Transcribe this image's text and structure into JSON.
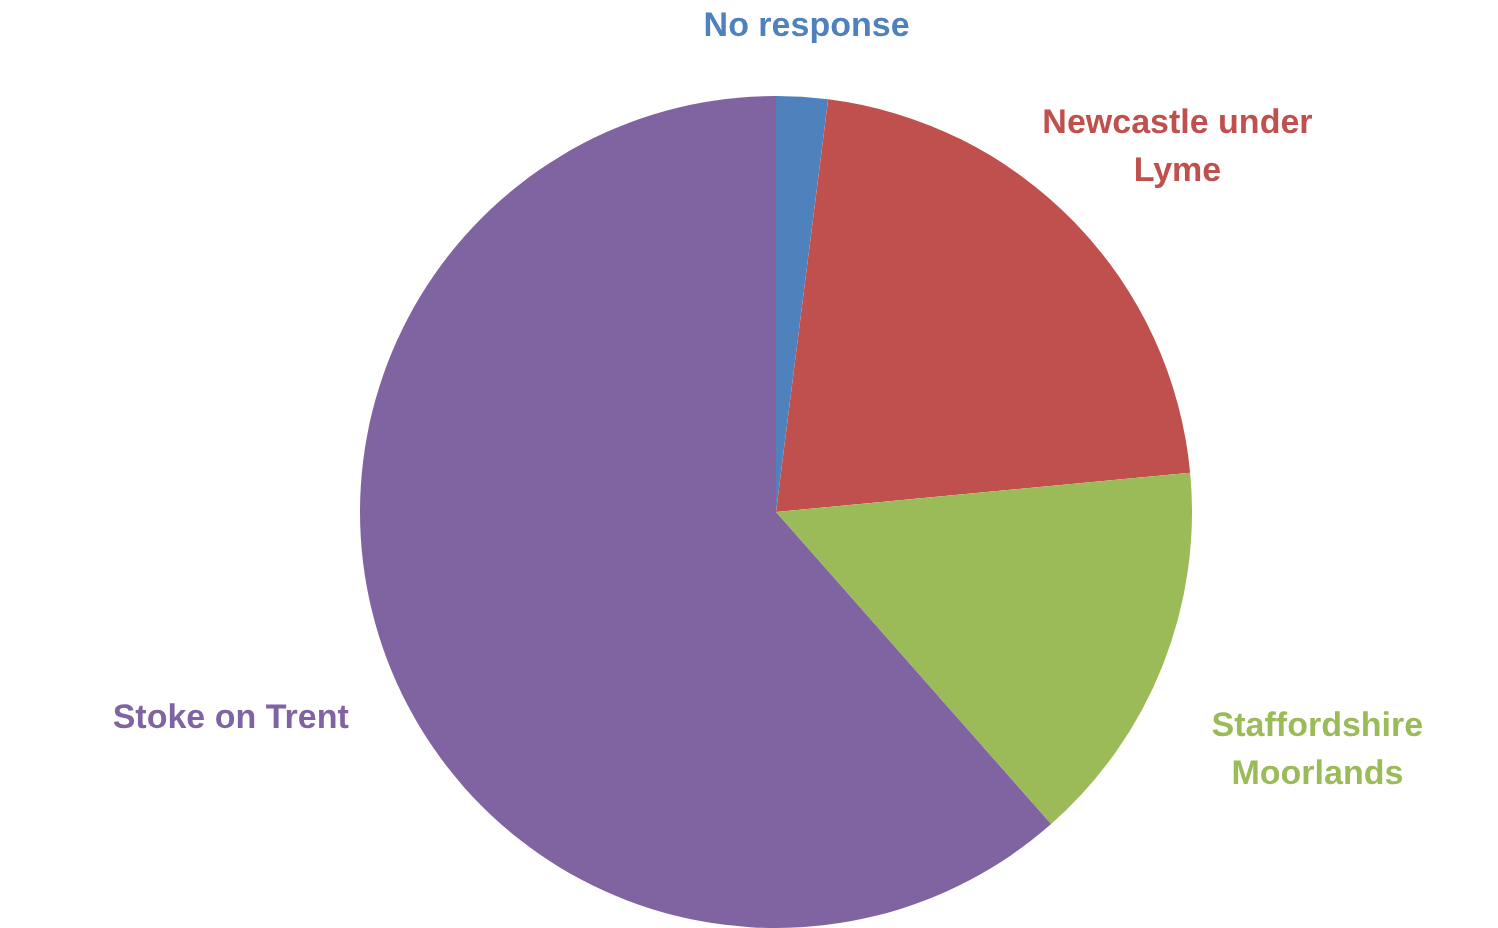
{
  "chart_data": {
    "type": "pie",
    "categories": [
      "No response",
      "Newcastle under Lyme",
      "Staffordshire Moorlands",
      "Stoke on Trent"
    ],
    "values": [
      2,
      21.5,
      15,
      61.5
    ],
    "colors": [
      "#4f81bd",
      "#c0504d",
      "#9bbb59",
      "#8064a2"
    ]
  }
}
